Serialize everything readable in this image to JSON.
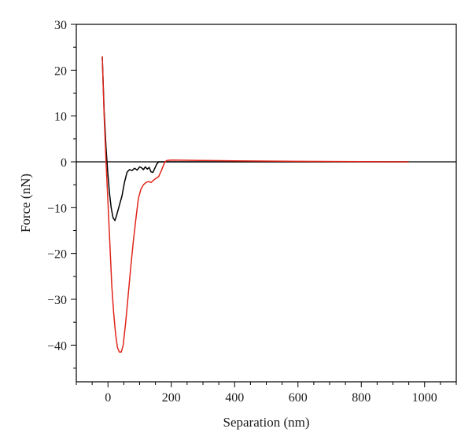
{
  "chart_data": {
    "type": "line",
    "title": "",
    "xlabel": "Separation (nm)",
    "ylabel": "Force (nN)",
    "xlim": [
      -100,
      1100
    ],
    "ylim": [
      -48,
      30
    ],
    "xticks": [
      0,
      200,
      400,
      600,
      800,
      1000
    ],
    "yticks": [
      30,
      20,
      10,
      0,
      -10,
      -20,
      -30,
      -40
    ],
    "x_minor_step": 50,
    "y_minor_step": 5,
    "grid": false,
    "zero_line": true,
    "series": [
      {
        "color": "#000000",
        "points": [
          [
            -18,
            23
          ],
          [
            -12,
            11
          ],
          [
            -6,
            3
          ],
          [
            0,
            -3
          ],
          [
            5,
            -7
          ],
          [
            10,
            -10
          ],
          [
            16,
            -12.2
          ],
          [
            22,
            -12.8
          ],
          [
            28,
            -11.5
          ],
          [
            36,
            -9.5
          ],
          [
            44,
            -7.5
          ],
          [
            52,
            -4.5
          ],
          [
            60,
            -2.3
          ],
          [
            68,
            -1.7
          ],
          [
            76,
            -1.9
          ],
          [
            84,
            -1.4
          ],
          [
            92,
            -1.8
          ],
          [
            100,
            -1.1
          ],
          [
            106,
            -1.3
          ],
          [
            112,
            -1.7
          ],
          [
            118,
            -1.1
          ],
          [
            124,
            -1.6
          ],
          [
            130,
            -1.2
          ],
          [
            136,
            -2.2
          ],
          [
            142,
            -2.3
          ],
          [
            148,
            -1.4
          ],
          [
            154,
            -0.5
          ],
          [
            160,
            0
          ],
          [
            175,
            0
          ],
          [
            950,
            0
          ]
        ]
      },
      {
        "color": "#e0251b",
        "points": [
          [
            -18,
            23
          ],
          [
            -12,
            10
          ],
          [
            -6,
            0
          ],
          [
            0,
            -9
          ],
          [
            6,
            -18
          ],
          [
            12,
            -27
          ],
          [
            18,
            -33
          ],
          [
            24,
            -37.5
          ],
          [
            30,
            -40.5
          ],
          [
            36,
            -41.5
          ],
          [
            42,
            -41.5
          ],
          [
            48,
            -40
          ],
          [
            56,
            -35
          ],
          [
            64,
            -29
          ],
          [
            72,
            -23
          ],
          [
            80,
            -17.5
          ],
          [
            88,
            -12.5
          ],
          [
            96,
            -8
          ],
          [
            104,
            -6
          ],
          [
            112,
            -5
          ],
          [
            120,
            -4.5
          ],
          [
            128,
            -4.3
          ],
          [
            136,
            -4.5
          ],
          [
            144,
            -4
          ],
          [
            152,
            -3.6
          ],
          [
            160,
            -3.2
          ],
          [
            168,
            -2
          ],
          [
            175,
            -0.8
          ],
          [
            180,
            0
          ],
          [
            186,
            0.3
          ],
          [
            200,
            0.4
          ],
          [
            300,
            0.3
          ],
          [
            400,
            0.2
          ],
          [
            600,
            0.1
          ],
          [
            800,
            0.05
          ],
          [
            950,
            0
          ]
        ]
      }
    ]
  }
}
